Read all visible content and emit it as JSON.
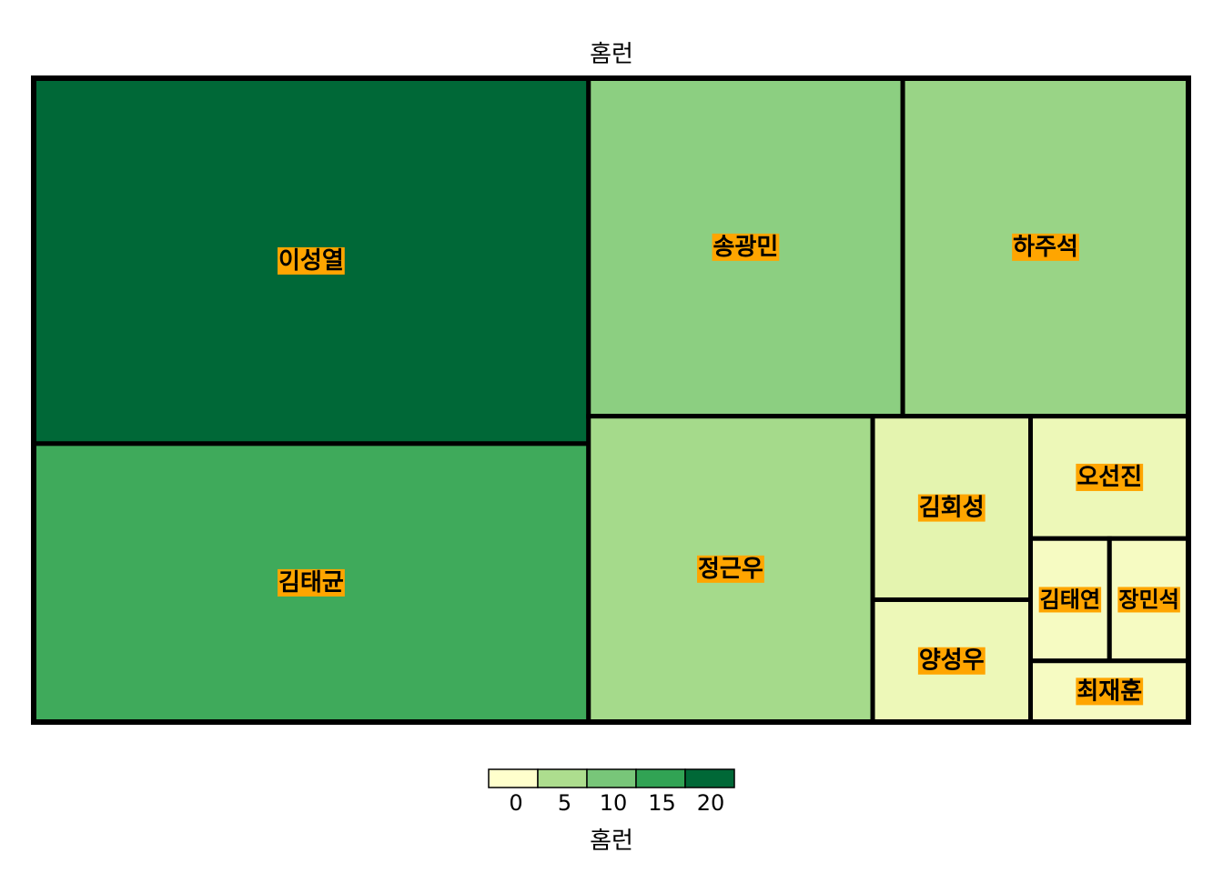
{
  "chart_data": {
    "type": "treemap",
    "title": "홈런",
    "value_label": "홈런",
    "items": [
      {
        "name": "이성열",
        "value": 21
      },
      {
        "name": "김태균",
        "value": 16
      },
      {
        "name": "송광민",
        "value": 11
      },
      {
        "name": "하주석",
        "value": 10
      },
      {
        "name": "정근우",
        "value": 9
      },
      {
        "name": "김회성",
        "value": 3
      },
      {
        "name": "양성우",
        "value": 2
      },
      {
        "name": "오선진",
        "value": 2
      },
      {
        "name": "김태연",
        "value": 1
      },
      {
        "name": "장민석",
        "value": 1
      },
      {
        "name": "최재훈",
        "value": 1
      }
    ],
    "legend": {
      "ticks": [
        "0",
        "5",
        "10",
        "15",
        "20"
      ],
      "colors": [
        "#ffffcc",
        "#d9f0a3",
        "#addd8e",
        "#78c679",
        "#31a354",
        "#006837"
      ],
      "range": [
        0,
        21
      ]
    },
    "label_background": "#ffa500",
    "border_color": "#000000"
  }
}
